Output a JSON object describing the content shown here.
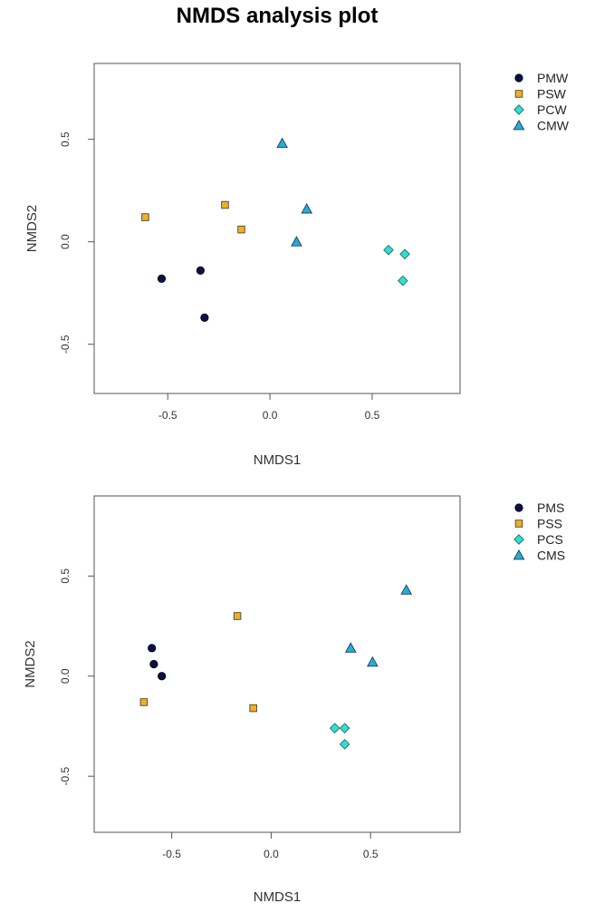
{
  "figure_title": "NMDS analysis plot",
  "colors": {
    "navy": "#0b0f4a",
    "orange": "#f0b020",
    "cyan": "#2de0d4",
    "blue": "#27acd6"
  },
  "chart_data": [
    {
      "type": "scatter",
      "title": "",
      "xlabel": "NMDS1",
      "ylabel": "NMDS2",
      "xlim": [
        -0.86,
        0.93
      ],
      "ylim": [
        -0.74,
        0.87
      ],
      "xticks": [
        "-0.5",
        "0.0",
        "0.5"
      ],
      "yticks": [
        "-0.5",
        "0.0",
        "0.5"
      ],
      "grid": false,
      "legend_position": "top-right outside",
      "series": [
        {
          "name": "PMW",
          "marker": "circle",
          "color": "#0b0f4a",
          "points": [
            [
              -0.53,
              -0.18
            ],
            [
              -0.34,
              -0.14
            ],
            [
              -0.32,
              -0.37
            ]
          ]
        },
        {
          "name": "PSW",
          "marker": "square",
          "color": "#f0b020",
          "points": [
            [
              -0.61,
              0.12
            ],
            [
              -0.22,
              0.18
            ],
            [
              -0.14,
              0.06
            ]
          ]
        },
        {
          "name": "PCW",
          "marker": "diamond",
          "color": "#2de0d4",
          "points": [
            [
              0.58,
              -0.04
            ],
            [
              0.66,
              -0.06
            ],
            [
              0.65,
              -0.19
            ]
          ]
        },
        {
          "name": "CMW",
          "marker": "triangle",
          "color": "#27acd6",
          "points": [
            [
              0.06,
              0.48
            ],
            [
              0.18,
              0.16
            ],
            [
              0.13,
              0.0
            ]
          ]
        }
      ]
    },
    {
      "type": "scatter",
      "title": "",
      "xlabel": "NMDS1",
      "ylabel": "NMDS2",
      "xlim": [
        -0.89,
        0.95
      ],
      "ylim": [
        -0.78,
        0.9
      ],
      "xticks": [
        "-0.5",
        "0.0",
        "0.5"
      ],
      "yticks": [
        "-0.5",
        "0.0",
        "0.5"
      ],
      "grid": false,
      "legend_position": "top-right outside",
      "series": [
        {
          "name": "PMS",
          "marker": "circle",
          "color": "#0b0f4a",
          "points": [
            [
              -0.6,
              0.14
            ],
            [
              -0.59,
              0.06
            ],
            [
              -0.55,
              0.0
            ]
          ]
        },
        {
          "name": "PSS",
          "marker": "square",
          "color": "#f0b020",
          "points": [
            [
              -0.64,
              -0.13
            ],
            [
              -0.17,
              0.3
            ],
            [
              -0.09,
              -0.16
            ]
          ]
        },
        {
          "name": "PCS",
          "marker": "diamond",
          "color": "#2de0d4",
          "points": [
            [
              0.32,
              -0.26
            ],
            [
              0.37,
              -0.26
            ],
            [
              0.37,
              -0.34
            ]
          ]
        },
        {
          "name": "CMS",
          "marker": "triangle",
          "color": "#27acd6",
          "points": [
            [
              0.4,
              0.14
            ],
            [
              0.51,
              0.07
            ],
            [
              0.68,
              0.43
            ]
          ]
        }
      ]
    }
  ]
}
